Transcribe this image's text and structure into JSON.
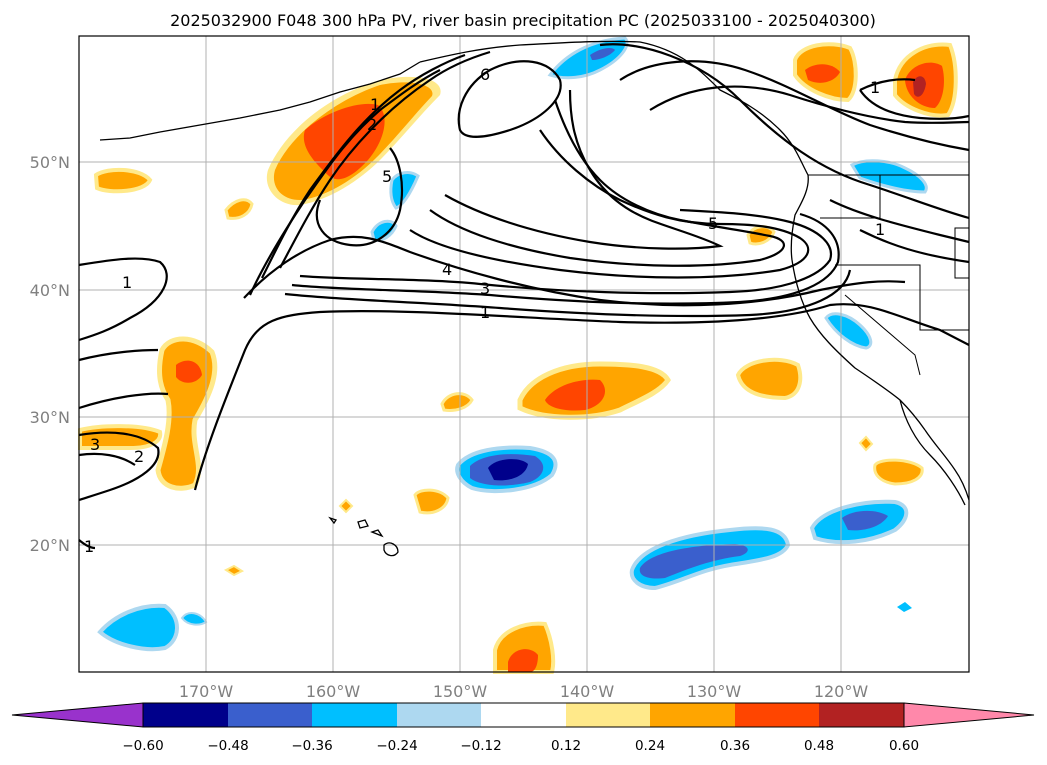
{
  "title": "2025032900 F048 300 hPa PV, river basin precipitation PC (2025033100 - 2025040300)",
  "lat_labels": [
    "50°N",
    "40°N",
    "30°N",
    "20°N"
  ],
  "lon_labels": [
    "170°W",
    "160°W",
    "150°W",
    "140°W",
    "130°W",
    "120°W"
  ],
  "contour_labels": [
    "1",
    "2",
    "6",
    "5",
    "5",
    "4",
    "3",
    "1",
    "1",
    "1",
    "3",
    "2",
    "1",
    "1"
  ],
  "colorbar": {
    "tick_labels": [
      "−0.60",
      "−0.48",
      "−0.36",
      "−0.24",
      "−0.12",
      "0.12",
      "0.24",
      "0.36",
      "0.48",
      "0.60"
    ],
    "colors": [
      "#9932cc",
      "#00008b",
      "#3a5fcd",
      "#00bfff",
      "#add8f0",
      "#ffffff",
      "#ffe98a",
      "#ffa500",
      "#ff4500",
      "#b22222",
      "#ff88aa"
    ]
  },
  "map_data": {
    "projection": "PlateCarree",
    "lon_range": [
      "180°",
      "110°W"
    ],
    "lat_range": [
      "10°N",
      "60°N"
    ],
    "gridlines": true,
    "fields": [
      "300 hPa PV (contours)",
      "river basin precipitation PC (shading)"
    ]
  }
}
